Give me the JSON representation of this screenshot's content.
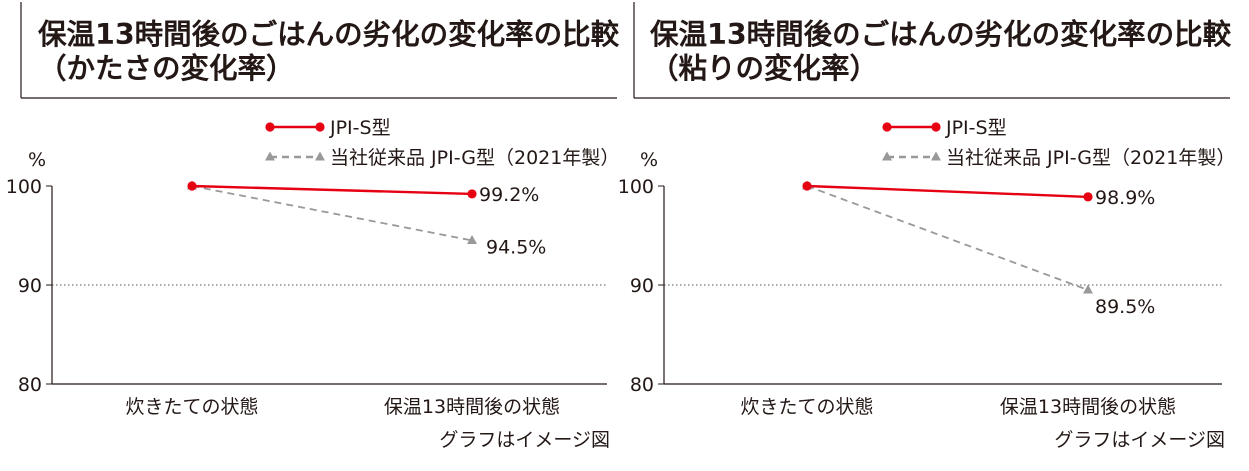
{
  "chart_data": [
    {
      "type": "line",
      "title_lines": [
        "保温13時間後のごはんの劣化の変化率の比較",
        "（かたさの変化率）"
      ],
      "ylabel": "%",
      "ylim": [
        80,
        100
      ],
      "yticks": [
        "100",
        "90",
        "80"
      ],
      "reference_line": 90,
      "categories": [
        "炊きたての状態",
        "保温13時間後の状態"
      ],
      "series": [
        {
          "name": "JPI-S型",
          "values": [
            100,
            99.2
          ],
          "color": "#e60012",
          "style": "solid",
          "marker": "circle",
          "end_label": "99.2%"
        },
        {
          "name": "当社従来品 JPI-G型（2021年製）",
          "values": [
            100,
            94.5
          ],
          "color": "#999999",
          "style": "dashed",
          "marker": "triangle",
          "end_label": "94.5%"
        }
      ],
      "note": "グラフはイメージ図"
    },
    {
      "type": "line",
      "title_lines": [
        "保温13時間後のごはんの劣化の変化率の比較",
        "（粘りの変化率）"
      ],
      "ylabel": "%",
      "ylim": [
        80,
        100
      ],
      "yticks": [
        "100",
        "90",
        "80"
      ],
      "reference_line": 90,
      "categories": [
        "炊きたての状態",
        "保温13時間後の状態"
      ],
      "series": [
        {
          "name": "JPI-S型",
          "values": [
            100,
            98.9
          ],
          "color": "#e60012",
          "style": "solid",
          "marker": "circle",
          "end_label": "98.9%"
        },
        {
          "name": "当社従来品 JPI-G型（2021年製）",
          "values": [
            100,
            89.5
          ],
          "color": "#999999",
          "style": "dashed",
          "marker": "triangle",
          "end_label": "89.5%"
        }
      ],
      "note": "グラフはイメージ図"
    }
  ]
}
